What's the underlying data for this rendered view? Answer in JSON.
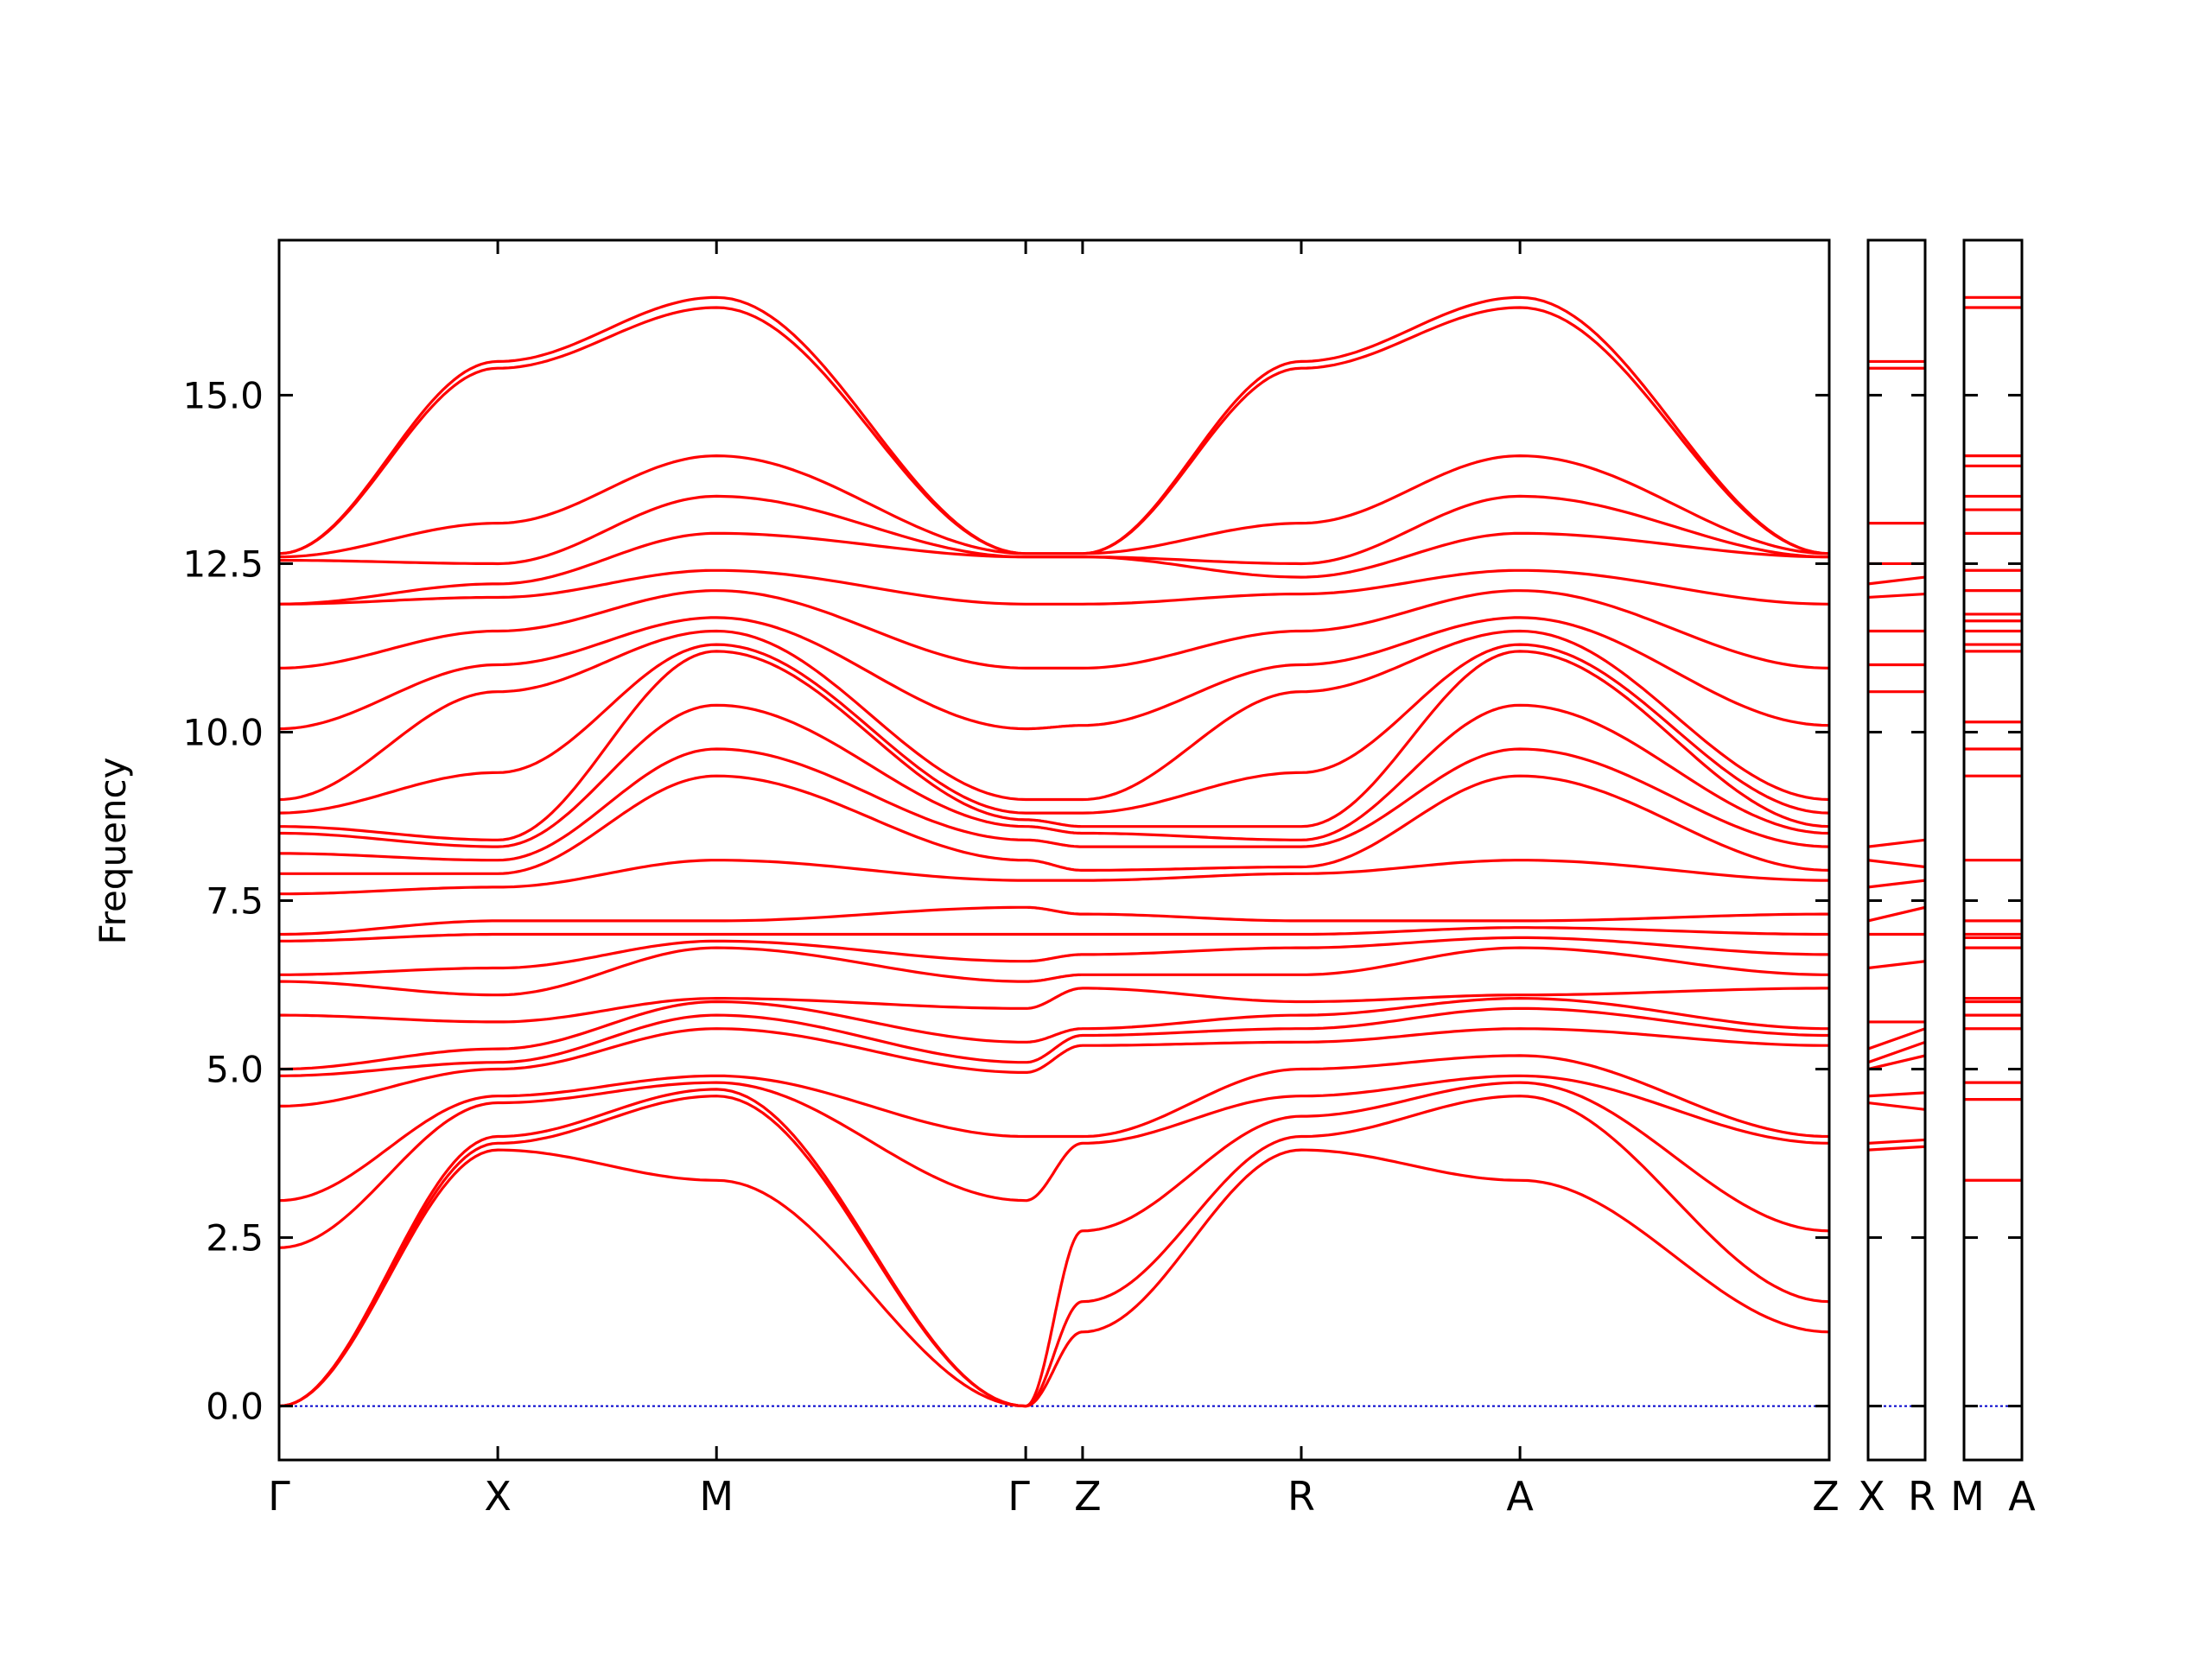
{
  "chart_data": {
    "type": "line",
    "title": "",
    "ylabel": "Frequency",
    "ylim": [
      -0.8,
      17.3
    ],
    "yticks": [
      "0.0",
      "2.5",
      "5.0",
      "7.5",
      "10.0",
      "12.5",
      "15.0"
    ],
    "ytick_values": [
      0.0,
      2.5,
      5.0,
      7.5,
      10.0,
      12.5,
      15.0
    ],
    "grid": false,
    "legend": "none",
    "line_color": "#ff0000",
    "zero_line_color": "#0000cc",
    "path_labels": [
      "Γ",
      "X",
      "M",
      "Γ",
      "Z",
      "R",
      "A",
      "Z",
      "X",
      "R",
      "M",
      "A"
    ],
    "panels": [
      {
        "name": "main",
        "points": [
          "Γ",
          "X",
          "M",
          "Γ",
          "Z",
          "R",
          "A",
          "Z"
        ],
        "segment_lengths": [
          1.0,
          1.0,
          1.414,
          0.26,
          1.0,
          1.0,
          1.414
        ],
        "bands": [
          {
            "name": "band-1",
            "values": [
              0.0,
              3.8,
              3.35,
              0.0,
              1.1,
              3.8,
              3.35,
              1.1
            ]
          },
          {
            "name": "band-2",
            "values": [
              0.0,
              3.9,
              4.6,
              0.0,
              1.55,
              4.0,
              4.6,
              1.55
            ]
          },
          {
            "name": "band-3",
            "values": [
              0.0,
              4.0,
              4.7,
              0.0,
              2.6,
              4.3,
              4.8,
              2.6
            ]
          },
          {
            "name": "band-4",
            "values": [
              2.35,
              4.5,
              4.8,
              3.05,
              3.9,
              4.6,
              4.9,
              3.9
            ]
          },
          {
            "name": "band-5",
            "values": [
              3.05,
              4.6,
              4.9,
              4.0,
              4.0,
              5.0,
              5.2,
              4.0
            ]
          },
          {
            "name": "band-6",
            "values": [
              4.45,
              5.0,
              5.6,
              4.95,
              5.35,
              5.4,
              5.6,
              5.35
            ]
          },
          {
            "name": "band-7",
            "values": [
              4.9,
              5.1,
              5.8,
              5.1,
              5.5,
              5.6,
              5.9,
              5.5
            ]
          },
          {
            "name": "band-8",
            "values": [
              5.0,
              5.3,
              6.0,
              5.4,
              5.6,
              5.8,
              6.05,
              5.6
            ]
          },
          {
            "name": "band-9",
            "values": [
              5.8,
              5.7,
              6.05,
              5.9,
              6.2,
              6.0,
              6.1,
              6.2
            ]
          },
          {
            "name": "band-10",
            "values": [
              6.3,
              6.1,
              6.8,
              6.3,
              6.4,
              6.4,
              6.8,
              6.4
            ]
          },
          {
            "name": "band-11",
            "values": [
              6.4,
              6.5,
              6.9,
              6.6,
              6.7,
              6.8,
              6.95,
              6.7
            ]
          },
          {
            "name": "band-12",
            "values": [
              6.9,
              7.0,
              7.0,
              7.0,
              7.0,
              7.0,
              7.1,
              7.0
            ]
          },
          {
            "name": "band-13",
            "values": [
              7.0,
              7.2,
              7.2,
              7.4,
              7.3,
              7.2,
              7.2,
              7.3
            ]
          },
          {
            "name": "band-14",
            "values": [
              7.6,
              7.7,
              8.1,
              7.8,
              7.8,
              7.9,
              8.1,
              7.8
            ]
          },
          {
            "name": "band-15",
            "values": [
              7.9,
              7.9,
              9.35,
              8.1,
              7.95,
              8.0,
              9.35,
              7.95
            ]
          },
          {
            "name": "band-16",
            "values": [
              8.2,
              8.1,
              9.75,
              8.4,
              8.3,
              8.3,
              9.75,
              8.3
            ]
          },
          {
            "name": "band-17",
            "values": [
              8.5,
              8.3,
              10.4,
              8.6,
              8.5,
              8.4,
              10.4,
              8.5
            ]
          },
          {
            "name": "band-18",
            "values": [
              8.6,
              8.4,
              11.2,
              8.7,
              8.6,
              8.6,
              11.2,
              8.6
            ]
          },
          {
            "name": "band-19",
            "values": [
              8.8,
              9.4,
              11.3,
              8.8,
              8.8,
              9.4,
              11.3,
              8.8
            ]
          },
          {
            "name": "band-20",
            "values": [
              9.0,
              10.6,
              11.5,
              9.0,
              9.0,
              10.6,
              11.5,
              9.0
            ]
          },
          {
            "name": "band-21",
            "values": [
              10.05,
              11.0,
              11.7,
              10.05,
              10.1,
              11.0,
              11.7,
              10.1
            ]
          },
          {
            "name": "band-22",
            "values": [
              10.95,
              11.5,
              12.1,
              10.95,
              10.95,
              11.5,
              12.1,
              10.95
            ]
          },
          {
            "name": "band-23",
            "values": [
              11.9,
              12.0,
              12.4,
              11.9,
              11.9,
              12.05,
              12.4,
              11.9
            ]
          },
          {
            "name": "band-24",
            "values": [
              11.9,
              12.2,
              12.95,
              12.6,
              12.6,
              12.3,
              12.95,
              12.6
            ]
          },
          {
            "name": "band-25",
            "values": [
              12.55,
              12.5,
              13.5,
              12.6,
              12.6,
              12.5,
              13.5,
              12.6
            ]
          },
          {
            "name": "band-26",
            "values": [
              12.6,
              13.1,
              14.1,
              12.65,
              12.65,
              13.1,
              14.1,
              12.65
            ]
          },
          {
            "name": "band-27",
            "values": [
              12.65,
              15.4,
              16.3,
              12.65,
              12.65,
              15.4,
              16.3,
              12.65
            ]
          },
          {
            "name": "band-28",
            "values": [
              12.65,
              15.5,
              16.45,
              12.65,
              12.65,
              15.5,
              16.45,
              12.65
            ]
          }
        ]
      },
      {
        "name": "x-r",
        "points": [
          "X",
          "R"
        ],
        "values_at_start": [
          3.8,
          3.9,
          4.5,
          4.6,
          5.0,
          5.1,
          5.3,
          5.7,
          6.5,
          7.0,
          7.2,
          7.7,
          8.1,
          8.3,
          10.6,
          11.0,
          11.5,
          12.0,
          12.2,
          12.5,
          13.1,
          15.4,
          15.5
        ],
        "values_at_end": [
          3.85,
          3.95,
          4.4,
          4.65,
          5.2,
          5.4,
          5.6,
          5.7,
          6.6,
          7.0,
          7.4,
          7.8,
          8.0,
          8.4,
          10.6,
          11.0,
          11.5,
          12.05,
          12.3,
          12.5,
          13.1,
          15.4,
          15.5
        ]
      },
      {
        "name": "m-a",
        "points": [
          "M",
          "A"
        ],
        "values": [
          3.35,
          4.55,
          4.8,
          5.6,
          5.8,
          6.0,
          6.05,
          6.8,
          6.95,
          7.0,
          7.2,
          8.1,
          9.35,
          9.75,
          10.15,
          11.2,
          11.3,
          11.5,
          11.65,
          11.75,
          12.1,
          12.4,
          12.95,
          13.3,
          13.5,
          13.95,
          14.1,
          16.3,
          16.45
        ]
      }
    ]
  }
}
